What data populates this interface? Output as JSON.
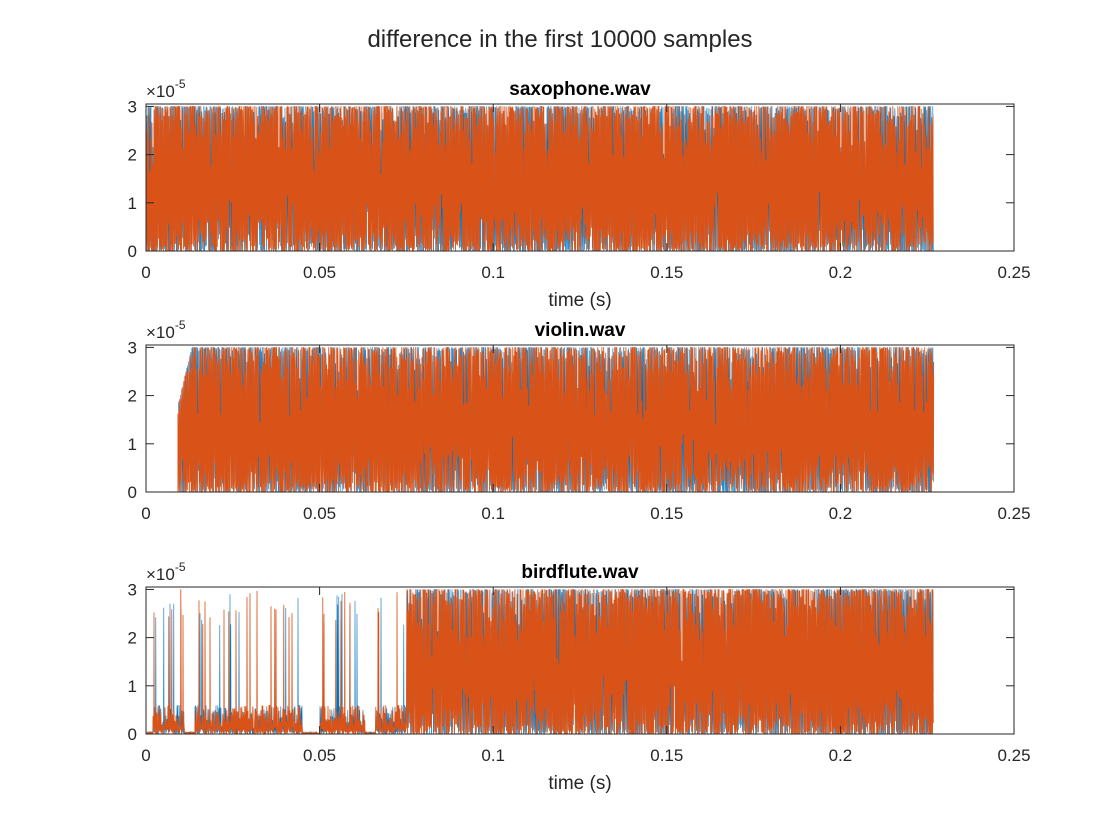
{
  "figure": {
    "title": "difference in the first 10000 samples"
  },
  "series_colors": [
    "#0072BD",
    "#D95319"
  ],
  "chart_data": [
    {
      "type": "line",
      "title": "saxophone.wav",
      "xlabel": "time (s)",
      "ylabel": "",
      "xlim": [
        0,
        0.25
      ],
      "ylim": [
        0,
        3.05
      ],
      "x_ticks": [
        "0",
        "0.05",
        "0.1",
        "0.15",
        "0.2",
        "0.25"
      ],
      "y_ticks": [
        "0",
        "1",
        "2",
        "3"
      ],
      "y_exponent": "-5",
      "data_end_x": 0.2268,
      "onset_x": 0,
      "sparse_until_x": 0,
      "grid": false,
      "series": [
        {
          "color": "#0072BD",
          "y_min": 0,
          "y_max": 3
        },
        {
          "color": "#D95319",
          "y_min": 0,
          "y_max": 3
        }
      ]
    },
    {
      "type": "line",
      "title": "violin.wav",
      "xlabel": "",
      "ylabel": "",
      "xlim": [
        0,
        0.25
      ],
      "ylim": [
        0,
        3.05
      ],
      "x_ticks": [
        "0",
        "0.05",
        "0.1",
        "0.15",
        "0.2",
        "0.25"
      ],
      "y_ticks": [
        "0",
        "1",
        "2",
        "3"
      ],
      "y_exponent": "-5",
      "data_end_x": 0.2268,
      "onset_x": 0.0092,
      "sparse_until_x": 0,
      "grid": false,
      "series": [
        {
          "color": "#0072BD",
          "y_min": 0,
          "y_max": 3
        },
        {
          "color": "#D95319",
          "y_min": 0,
          "y_max": 3
        }
      ]
    },
    {
      "type": "line",
      "title": "birdflute.wav",
      "xlabel": "time (s)",
      "ylabel": "",
      "xlim": [
        0,
        0.25
      ],
      "ylim": [
        0,
        3.05
      ],
      "x_ticks": [
        "0",
        "0.05",
        "0.1",
        "0.15",
        "0.2",
        "0.25"
      ],
      "y_ticks": [
        "0",
        "1",
        "2",
        "3"
      ],
      "y_exponent": "-5",
      "data_end_x": 0.2268,
      "onset_x": 0,
      "sparse_until_x": 0.075,
      "grid": false,
      "series": [
        {
          "color": "#0072BD",
          "y_min": 0,
          "y_max": 3
        },
        {
          "color": "#D95319",
          "y_min": 0,
          "y_max": 3
        }
      ]
    }
  ]
}
